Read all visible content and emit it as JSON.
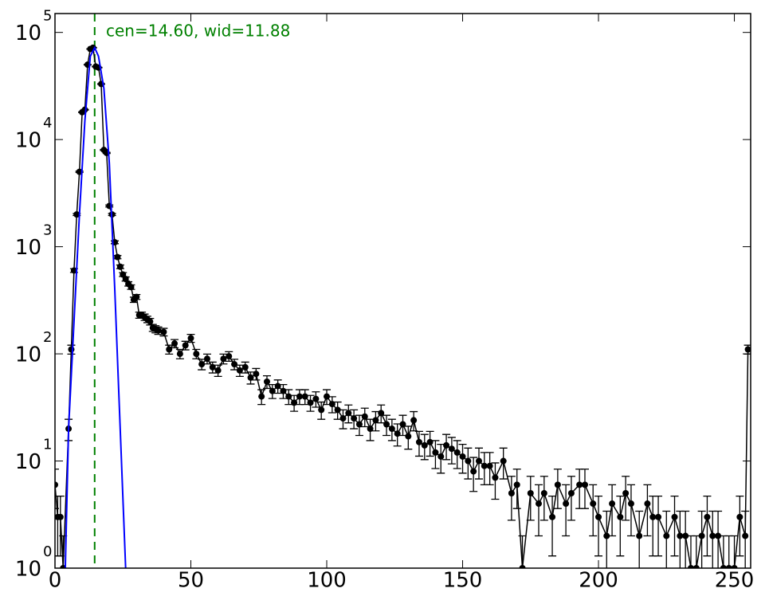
{
  "chart_data": {
    "type": "errorbar",
    "annotation": "cen=14.60, wid=11.88",
    "vline": 14.6,
    "vline_color": "#008000",
    "xlim": [
      0,
      256
    ],
    "xticks": [
      0,
      50,
      100,
      150,
      200,
      250
    ],
    "ylim": [
      1,
      150000
    ],
    "yscale": "log",
    "yticks": [
      {
        "value": 1,
        "label": "10",
        "exponent": "0"
      },
      {
        "value": 10,
        "label": "10",
        "exponent": "1"
      },
      {
        "value": 100,
        "label": "10",
        "exponent": "2"
      },
      {
        "value": 1000,
        "label": "10",
        "exponent": "3"
      },
      {
        "value": 10000,
        "label": "10",
        "exponent": "4"
      },
      {
        "value": 100000,
        "label": "10",
        "exponent": "5"
      }
    ],
    "series": [
      {
        "color": "#000000",
        "x": [
          0,
          1,
          2,
          3,
          5,
          6,
          7,
          8,
          9,
          10,
          11,
          12,
          13,
          14,
          15,
          16,
          17,
          18,
          19,
          20,
          21,
          22,
          23,
          24,
          25,
          26,
          27,
          28,
          29,
          30,
          31,
          32,
          33,
          34,
          35,
          36,
          37,
          38,
          40,
          42,
          44,
          46,
          48,
          50,
          52,
          54,
          56,
          58,
          60,
          62,
          64,
          66,
          68,
          70,
          72,
          74,
          76,
          78,
          80,
          82,
          84,
          86,
          88,
          90,
          92,
          94,
          96,
          98,
          100,
          102,
          104,
          106,
          108,
          110,
          112,
          114,
          116,
          118,
          120,
          122,
          124,
          126,
          128,
          130,
          132,
          134,
          136,
          138,
          140,
          142,
          144,
          146,
          148,
          150,
          152,
          154,
          156,
          158,
          160,
          162,
          165,
          168,
          170,
          172,
          175,
          178,
          180,
          183,
          185,
          188,
          190,
          193,
          195,
          198,
          200,
          203,
          205,
          208,
          210,
          212,
          215,
          218,
          220,
          222,
          225,
          228,
          230,
          232,
          234,
          236,
          238,
          240,
          242,
          244,
          246,
          248,
          250,
          252,
          254,
          255
        ],
        "values": [
          6,
          3,
          3,
          1,
          20,
          110,
          600,
          2000,
          5000,
          18000,
          19000,
          50000,
          70000,
          72000,
          48000,
          47000,
          33000,
          8000,
          7500,
          2400,
          2000,
          1100,
          800,
          650,
          550,
          500,
          450,
          420,
          320,
          340,
          230,
          230,
          220,
          210,
          200,
          175,
          170,
          165,
          160,
          110,
          125,
          100,
          120,
          140,
          100,
          80,
          90,
          75,
          70,
          90,
          95,
          80,
          70,
          75,
          60,
          65,
          40,
          55,
          45,
          50,
          45,
          40,
          35,
          40,
          40,
          35,
          38,
          30,
          40,
          34,
          30,
          25,
          28,
          25,
          22,
          26,
          20,
          24,
          28,
          22,
          20,
          18,
          22,
          17,
          24,
          15,
          14,
          15,
          12,
          11,
          14,
          13,
          12,
          11,
          10,
          8,
          10,
          9,
          9,
          7,
          10,
          5,
          6,
          1,
          5,
          4,
          5,
          3,
          6,
          4,
          5,
          6,
          6,
          4,
          3,
          2,
          4,
          3,
          5,
          4,
          2,
          4,
          3,
          3,
          2,
          3,
          2,
          2,
          1,
          1,
          2,
          3,
          2,
          2,
          1,
          1,
          1,
          3,
          2,
          110
        ],
        "errors": [
          2.4,
          1.7,
          1.7,
          1,
          4.5,
          10.5,
          24.5,
          44.7,
          70.7,
          134,
          138,
          224,
          265,
          268,
          219,
          217,
          182,
          89,
          87,
          49,
          45,
          33,
          28,
          25,
          23,
          22,
          21,
          20,
          18,
          18,
          15,
          15,
          15,
          14.5,
          14,
          13,
          13,
          13,
          13,
          10.5,
          11,
          10,
          11,
          12,
          10,
          9,
          9.5,
          8.7,
          8.4,
          9.5,
          9.7,
          9,
          8.4,
          8.7,
          7.7,
          8,
          6.3,
          7.4,
          6.7,
          7.1,
          6.7,
          6.3,
          5.9,
          6.3,
          6.3,
          5.9,
          6.2,
          5.5,
          6.3,
          5.8,
          5.5,
          5,
          5.3,
          5,
          4.7,
          5.1,
          4.5,
          4.9,
          5.3,
          4.7,
          4.5,
          4.2,
          4.7,
          4.1,
          4.9,
          3.9,
          3.7,
          3.9,
          3.5,
          3.3,
          3.7,
          3.6,
          3.5,
          3.3,
          3.2,
          2.8,
          3.2,
          3,
          3,
          2.6,
          3.2,
          2.2,
          2.4,
          1,
          2.2,
          2,
          2.2,
          1.7,
          2.4,
          2,
          2.2,
          2.4,
          2.4,
          2,
          1.7,
          1.4,
          2,
          1.7,
          2.2,
          2,
          1.4,
          2,
          1.7,
          1.7,
          1.4,
          1.7,
          1.4,
          1.4,
          1,
          1,
          1.4,
          1.7,
          1.4,
          1.4,
          1,
          1,
          1,
          1.7,
          1.4,
          10.5
        ]
      },
      {
        "color": "#0000ff",
        "x": [
          3.8,
          5,
          7,
          9,
          11,
          13,
          14.6,
          16,
          18,
          20,
          22,
          24,
          26
        ],
        "values": [
          1,
          20,
          200,
          2000,
          15000,
          60000,
          72000,
          60000,
          30000,
          6000,
          400,
          20,
          1
        ]
      }
    ]
  }
}
